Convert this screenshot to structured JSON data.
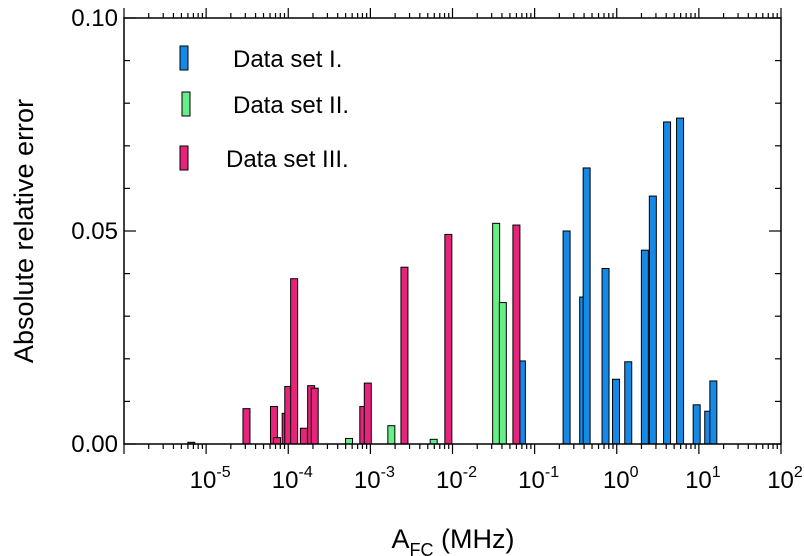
{
  "chart_data": {
    "type": "bar",
    "xscale": "log",
    "xlim": [
      1e-06,
      100
    ],
    "ylim": [
      0,
      0.1
    ],
    "grid": false,
    "legend_position": "top-left",
    "xlabel": {
      "main": "A",
      "sub": "FC",
      "unit": "(MHz)"
    },
    "ylabel": "Absolute relative error",
    "y_ticks": [
      {
        "value": 0.0,
        "label": "0.00"
      },
      {
        "value": 0.05,
        "label": "0.05"
      },
      {
        "value": 0.1,
        "label": "0.10"
      }
    ],
    "x_ticks": [
      {
        "value": 1e-05,
        "base": "10",
        "exp": "-5"
      },
      {
        "value": 0.0001,
        "base": "10",
        "exp": "-4"
      },
      {
        "value": 0.001,
        "base": "10",
        "exp": "-3"
      },
      {
        "value": 0.01,
        "base": "10",
        "exp": "-2"
      },
      {
        "value": 0.1,
        "base": "10",
        "exp": "-1"
      },
      {
        "value": 1,
        "base": "10",
        "exp": "0"
      },
      {
        "value": 10,
        "base": "10",
        "exp": "1"
      },
      {
        "value": 100,
        "base": "10",
        "exp": "2"
      }
    ],
    "series": [
      {
        "name": "Data set I.",
        "color": "#1589e8",
        "points": [
          {
            "x": 0.07,
            "y": 0.0195
          },
          {
            "x": 0.245,
            "y": 0.05
          },
          {
            "x": 0.39,
            "y": 0.0345
          },
          {
            "x": 0.43,
            "y": 0.0648
          },
          {
            "x": 0.73,
            "y": 0.0412
          },
          {
            "x": 0.98,
            "y": 0.0152
          },
          {
            "x": 1.38,
            "y": 0.0193
          },
          {
            "x": 2.2,
            "y": 0.0455
          },
          {
            "x": 2.75,
            "y": 0.0582
          },
          {
            "x": 4.1,
            "y": 0.0756
          },
          {
            "x": 5.9,
            "y": 0.0765
          },
          {
            "x": 9.4,
            "y": 0.0092
          },
          {
            "x": 13,
            "y": 0.0077
          },
          {
            "x": 15,
            "y": 0.0148
          }
        ]
      },
      {
        "name": "Data set II.",
        "color": "#66ee88",
        "points": [
          {
            "x": 0.00055,
            "y": 0.0013
          },
          {
            "x": 0.0018,
            "y": 0.0043
          },
          {
            "x": 0.0059,
            "y": 0.0011
          },
          {
            "x": 0.034,
            "y": 0.0518
          },
          {
            "x": 0.041,
            "y": 0.0332
          }
        ]
      },
      {
        "name": "Data set III.",
        "color": "#e8237b",
        "points": [
          {
            "x": 6.6e-06,
            "y": 0.0004
          },
          {
            "x": 3.1e-05,
            "y": 0.0083
          },
          {
            "x": 6.7e-05,
            "y": 0.0088
          },
          {
            "x": 7.3e-05,
            "y": 0.0015
          },
          {
            "x": 9.3e-05,
            "y": 0.0072
          },
          {
            "x": 0.0001,
            "y": 0.0135
          },
          {
            "x": 0.000118,
            "y": 0.0388
          },
          {
            "x": 0.000155,
            "y": 0.0037
          },
          {
            "x": 0.00019,
            "y": 0.0137
          },
          {
            "x": 0.00021,
            "y": 0.0131
          },
          {
            "x": 0.00082,
            "y": 0.0088
          },
          {
            "x": 0.00093,
            "y": 0.0143
          },
          {
            "x": 0.0026,
            "y": 0.0415
          },
          {
            "x": 0.0089,
            "y": 0.0492
          },
          {
            "x": 0.06,
            "y": 0.0514
          }
        ]
      }
    ]
  }
}
